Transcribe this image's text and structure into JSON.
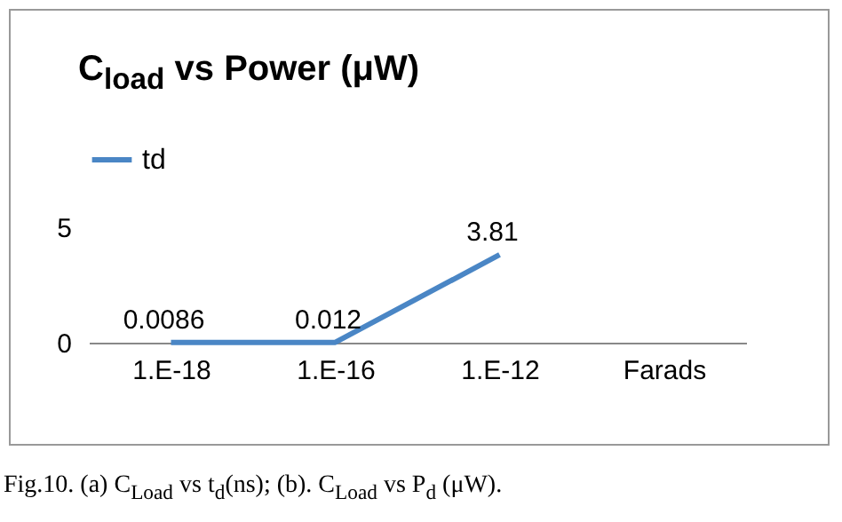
{
  "chart_data": {
    "type": "line",
    "title": "C$_{load}$ vs Power (μW)",
    "categories": [
      "1.E-18",
      "1.E-16",
      "1.E-12",
      "Farads"
    ],
    "series": [
      {
        "name": "td",
        "color": "#4a86c5",
        "values": [
          0.0086,
          0.012,
          3.81,
          null
        ]
      }
    ],
    "ylim": [
      0,
      5
    ],
    "yticks": [
      0,
      5
    ],
    "grid": false,
    "legend": "top left",
    "data_labels": true,
    "marker": "none",
    "line_style": "solid",
    "annotations": [
      "Fig.10.  (a)  C$_{Load}$ vs t$_{d}$(ns); (b). C$_{Load}$ vs P$_{d}$ (μW)."
    ]
  }
}
